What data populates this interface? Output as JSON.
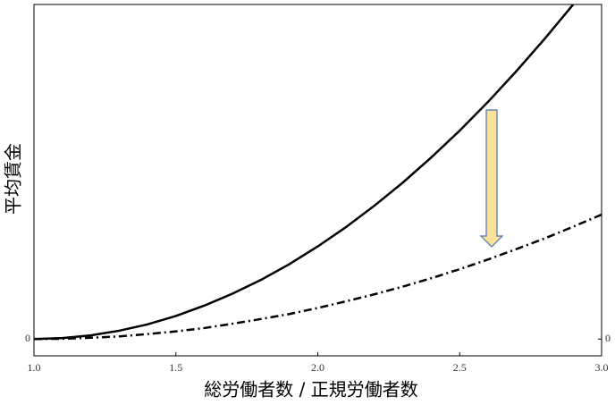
{
  "chart_data": {
    "type": "line",
    "x": [
      1.0,
      1.1,
      1.2,
      1.3,
      1.4,
      1.5,
      1.6,
      1.7,
      1.8,
      1.9,
      2.0,
      2.1,
      2.2,
      2.3,
      2.4,
      2.5,
      2.6,
      2.7,
      2.8,
      2.9,
      3.0
    ],
    "series": [
      {
        "color": "#000000",
        "dash": "solid",
        "values": [
          0,
          0.003,
          0.011,
          0.025,
          0.044,
          0.069,
          0.1,
          0.136,
          0.177,
          0.224,
          0.277,
          0.335,
          0.399,
          0.468,
          0.543,
          0.623,
          0.709,
          0.801,
          0.898,
          1.0,
          null
        ]
      },
      {
        "color": "#000000",
        "dash": "dashdot",
        "values": [
          0,
          0.001,
          0.004,
          0.008,
          0.015,
          0.023,
          0.033,
          0.046,
          0.06,
          0.075,
          0.093,
          0.113,
          0.134,
          0.157,
          0.182,
          0.209,
          0.238,
          0.269,
          0.301,
          0.336,
          0.372
        ]
      }
    ],
    "xlim": [
      1.0,
      3.0
    ],
    "xticks": [
      {
        "value": 1,
        "label": "1.0"
      },
      {
        "value": 1.5,
        "label": "1.5"
      },
      {
        "value": 2,
        "label": "2.0"
      },
      {
        "value": 2.5,
        "label": "2.5"
      },
      {
        "value": 3,
        "label": "3.0"
      }
    ],
    "ylim": [
      -0.05,
      1.0
    ],
    "yticks": [
      0
    ],
    "y2lim": [
      -0.05,
      1.0
    ],
    "y2ticks": [
      0
    ],
    "xlabel": "総労働者数 / 正規労働者数",
    "ylabel": "平均賃金"
  }
}
